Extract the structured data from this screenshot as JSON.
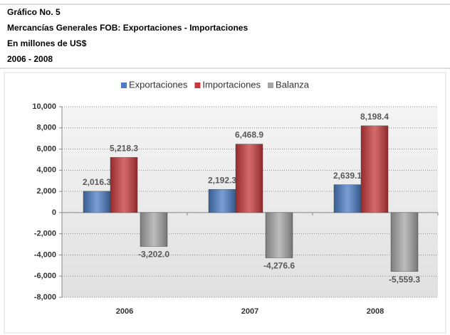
{
  "chart_data": {
    "type": "bar",
    "title_lines": [
      "Gráfico No. 5",
      "Mercancías Generales FOB:  Exportaciones - Importaciones",
      "En millones de US$",
      "2006 - 2008"
    ],
    "categories": [
      "2006",
      "2007",
      "2008"
    ],
    "series": [
      {
        "name": "Exportaciones",
        "color": "#4a7dc4",
        "values": [
          2016.3,
          2192.3,
          2639.1
        ],
        "value_labels": [
          "2,016.3",
          "2,192.3",
          "2,639.1"
        ]
      },
      {
        "name": "Importaciones",
        "color": "#c8393b",
        "values": [
          5218.3,
          6468.9,
          8198.4
        ],
        "value_labels": [
          "5,218.3",
          "6,468.9",
          "8,198.4"
        ]
      },
      {
        "name": "Balanza",
        "color": "#a6a6a6",
        "values": [
          -3202.0,
          -4276.6,
          -5559.3
        ],
        "value_labels": [
          "-3,202.0",
          "-4,276.6",
          "-5,559.3"
        ]
      }
    ],
    "ylim": [
      -8000,
      10000
    ],
    "yticks": [
      {
        "value": -8000,
        "label": "-8,000"
      },
      {
        "value": -6000,
        "label": "-6,000"
      },
      {
        "value": -4000,
        "label": "-4,000"
      },
      {
        "value": -2000,
        "label": "-2,000"
      },
      0,
      {
        "value": 2000,
        "label": "2,000"
      },
      {
        "value": 4000,
        "label": "4,000"
      },
      {
        "value": 6000,
        "label": "6,000"
      },
      {
        "value": 8000,
        "label": "8,000"
      },
      {
        "value": 10000,
        "label": "10,000"
      }
    ],
    "grid": true,
    "legend": "top"
  }
}
